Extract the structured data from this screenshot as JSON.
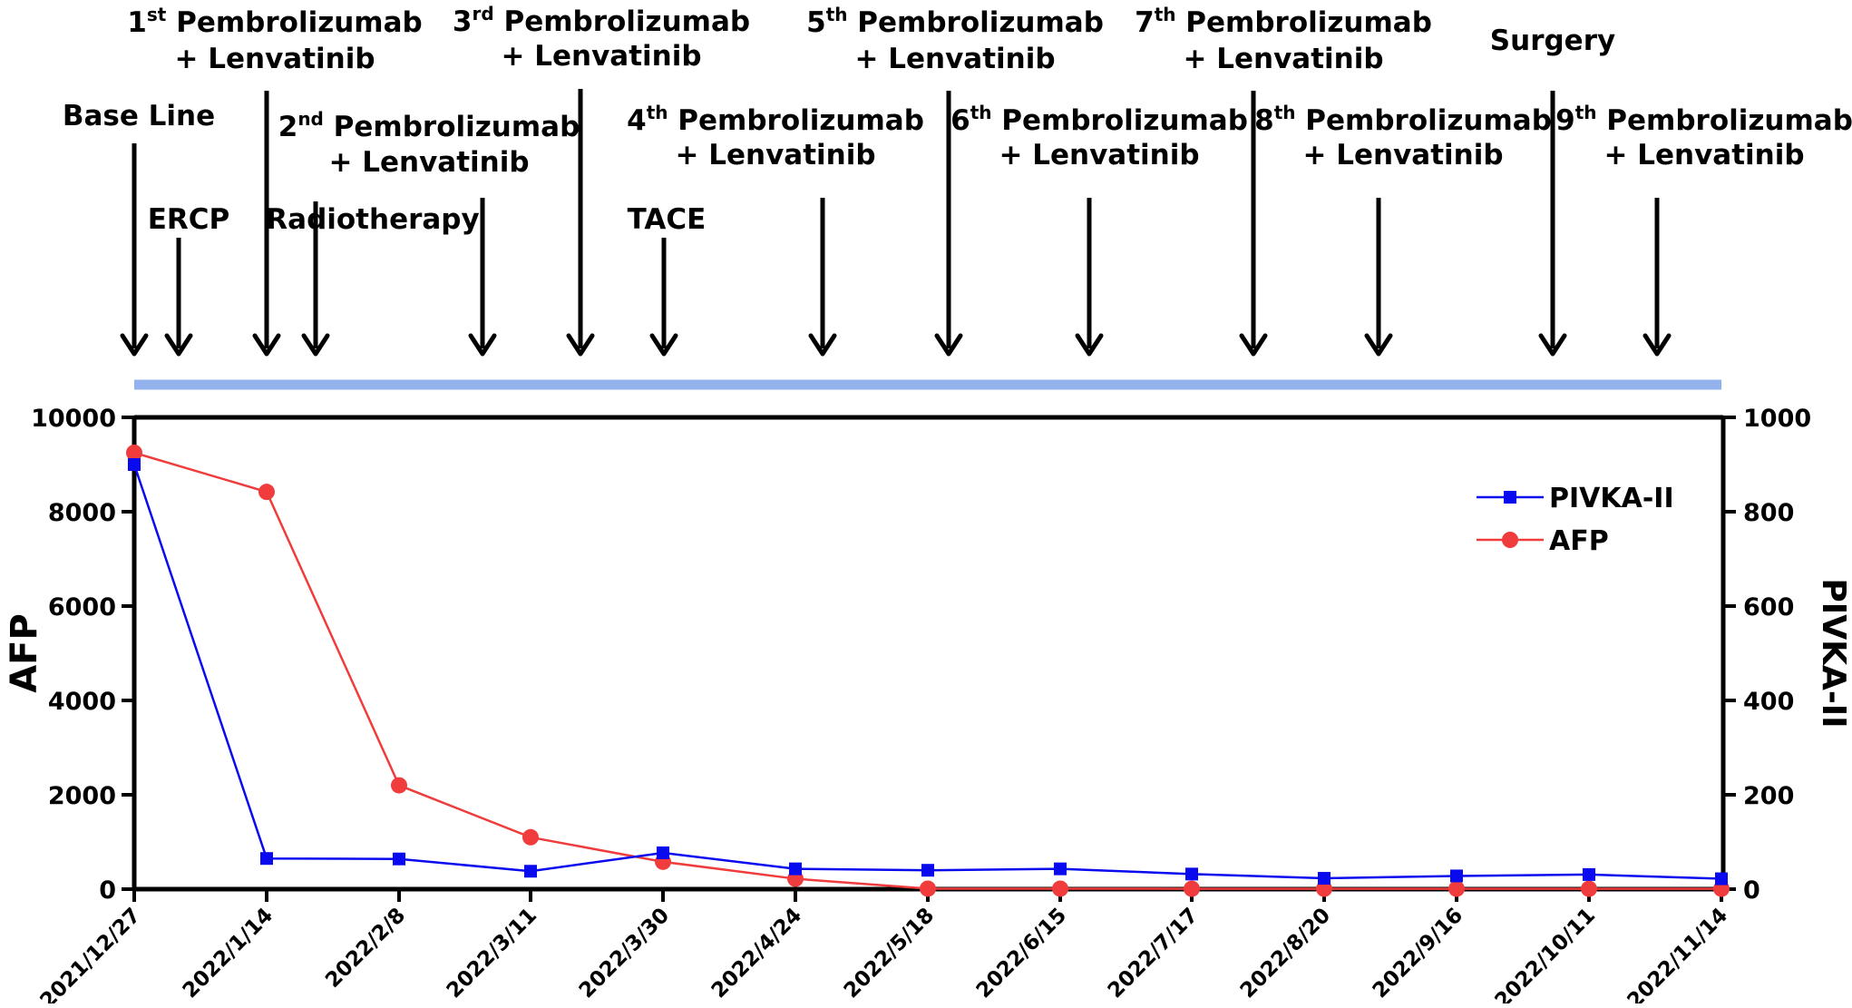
{
  "colors": {
    "pivka": "#0a0aee",
    "afp": "#f03c3c",
    "timeline_bar": "#93b1ec",
    "axis": "#000000",
    "text": "#000000"
  },
  "events": [
    {
      "date": "2021/12/27",
      "line1": "Base Line",
      "sup": "",
      "line1_rest": "",
      "line2": ""
    },
    {
      "date": "ERCP",
      "line1": "ERCP",
      "sup": "",
      "line1_rest": "",
      "line2": ""
    },
    {
      "date": "2022/1/14",
      "line1": "1",
      "sup": "st",
      "line1_rest": " Pembrolizumab",
      "line2": "+ Lenvatinib"
    },
    {
      "date": "2nd",
      "line1": "2",
      "sup": "nd",
      "line1_rest": " Pembrolizumab",
      "line2": "+ Lenvatinib"
    },
    {
      "date": "Radiotherapy",
      "line1": "Radiotherapy",
      "sup": "",
      "line1_rest": "",
      "line2": ""
    },
    {
      "date": "3rd",
      "line1": "3",
      "sup": "rd",
      "line1_rest": " Pembrolizumab",
      "line2": "+ Lenvatinib"
    },
    {
      "date": "TACE",
      "line1": "TACE",
      "sup": "",
      "line1_rest": "",
      "line2": ""
    },
    {
      "date": "4th",
      "line1": "4",
      "sup": "th",
      "line1_rest": " Pembrolizumab",
      "line2": "+ Lenvatinib"
    },
    {
      "date": "5th",
      "line1": "5",
      "sup": "th",
      "line1_rest": " Pembrolizumab",
      "line2": "+ Lenvatinib"
    },
    {
      "date": "6th",
      "line1": "6",
      "sup": "th",
      "line1_rest": " Pembrolizumab",
      "line2": "+ Lenvatinib"
    },
    {
      "date": "7th",
      "line1": "7",
      "sup": "th",
      "line1_rest": " Pembrolizumab",
      "line2": "+ Lenvatinib"
    },
    {
      "date": "8th",
      "line1": "8",
      "sup": "th",
      "line1_rest": " Pembrolizumab",
      "line2": "+ Lenvatinib"
    },
    {
      "date": "Surgery",
      "line1": "Surgery",
      "sup": "",
      "line1_rest": "",
      "line2": ""
    },
    {
      "date": "9th",
      "line1": "9",
      "sup": "th",
      "line1_rest": " Pembrolizumab",
      "line2": "+ Lenvatinib"
    }
  ],
  "chart_data": {
    "type": "line",
    "categories": [
      "2021/12/27",
      "2022/1/14",
      "2022/2/8",
      "2022/3/11",
      "2022/3/30",
      "2022/4/24",
      "2022/5/18",
      "2022/6/15",
      "2022/7/17",
      "2022/8/20",
      "2022/9/16",
      "2022/10/11",
      "2022/11/14"
    ],
    "series": [
      {
        "name": "PIVKA-II",
        "axis": "right",
        "marker": "square",
        "values": [
          900,
          65,
          64,
          38,
          77,
          43,
          40,
          43,
          32,
          23,
          28,
          31,
          22
        ]
      },
      {
        "name": "AFP",
        "axis": "left",
        "marker": "circle",
        "values": [
          9250,
          8420,
          2200,
          1100,
          580,
          220,
          10,
          10,
          8,
          8,
          8,
          8,
          8
        ]
      }
    ],
    "ylabel": "AFP",
    "y2label": "PIVKA-II",
    "ylim": [
      0,
      10000
    ],
    "y2lim": [
      0,
      1000
    ],
    "yticks": [
      "0",
      "2000",
      "4000",
      "6000",
      "8000",
      "10000"
    ],
    "y2ticks": [
      "0",
      "200",
      "400",
      "600",
      "800",
      "1000"
    ],
    "legend_position": "top-right"
  }
}
